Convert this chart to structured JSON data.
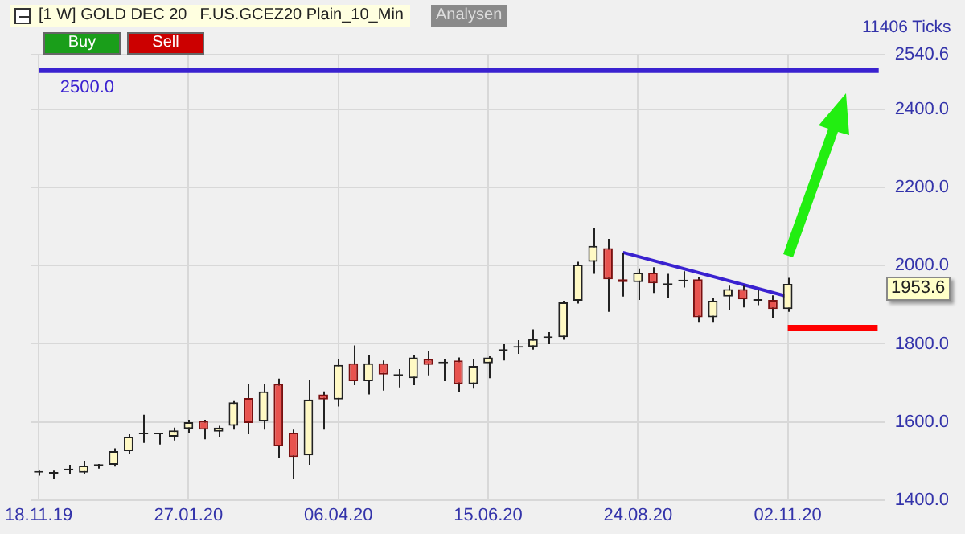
{
  "chart_data": {
    "type": "candlestick",
    "title": "[1 W] GOLD DEC 20",
    "subtitle": "F.US.GCEZ20 Plain_10_Min",
    "categories": [
      "18.11.19",
      null,
      null,
      null,
      null,
      null,
      null,
      null,
      null,
      null,
      "27.01.20",
      null,
      null,
      null,
      null,
      null,
      null,
      null,
      null,
      null,
      "06.04.20",
      null,
      null,
      null,
      null,
      null,
      null,
      null,
      null,
      null,
      "15.06.20",
      null,
      null,
      null,
      null,
      null,
      null,
      null,
      null,
      null,
      "24.08.20",
      null,
      null,
      null,
      null,
      null,
      null,
      null,
      null,
      null,
      "02.11.20",
      null,
      null,
      null,
      null,
      null,
      null
    ],
    "ohlc": [
      [
        1470,
        1475,
        1462,
        1470
      ],
      [
        1467,
        1475,
        1454,
        1467
      ],
      [
        1476,
        1490,
        1466,
        1476
      ],
      [
        1470,
        1500,
        1465,
        1488
      ],
      [
        1487,
        1492,
        1480,
        1487
      ],
      [
        1490,
        1532,
        1485,
        1525
      ],
      [
        1525,
        1568,
        1518,
        1562
      ],
      [
        1568,
        1618,
        1546,
        1568
      ],
      [
        1568,
        1572,
        1542,
        1568
      ],
      [
        1562,
        1585,
        1552,
        1578
      ],
      [
        1582,
        1605,
        1570,
        1599
      ],
      [
        1602,
        1605,
        1555,
        1580
      ],
      [
        1575,
        1590,
        1562,
        1585
      ],
      [
        1590,
        1655,
        1580,
        1650
      ],
      [
        1661,
        1697,
        1568,
        1597
      ],
      [
        1601,
        1697,
        1580,
        1678
      ],
      [
        1697,
        1711,
        1507,
        1537
      ],
      [
        1572,
        1580,
        1454,
        1510
      ],
      [
        1514,
        1707,
        1490,
        1657
      ],
      [
        1670,
        1678,
        1580,
        1657
      ],
      [
        1657,
        1761,
        1639,
        1746
      ],
      [
        1750,
        1796,
        1694,
        1704
      ],
      [
        1704,
        1771,
        1670,
        1750
      ],
      [
        1750,
        1757,
        1680,
        1721
      ],
      [
        1718,
        1735,
        1688,
        1718
      ],
      [
        1712,
        1771,
        1694,
        1765
      ],
      [
        1761,
        1782,
        1719,
        1746
      ],
      [
        1750,
        1761,
        1704,
        1750
      ],
      [
        1757,
        1765,
        1677,
        1697
      ],
      [
        1697,
        1761,
        1685,
        1743
      ],
      [
        1750,
        1768,
        1712,
        1765
      ],
      [
        1782,
        1799,
        1757,
        1782
      ],
      [
        1790,
        1809,
        1774,
        1790
      ],
      [
        1792,
        1837,
        1785,
        1812
      ],
      [
        1815,
        1830,
        1799,
        1815
      ],
      [
        1817,
        1910,
        1810,
        1906
      ],
      [
        1910,
        2010,
        1903,
        2003
      ],
      [
        2010,
        2097,
        1979,
        2051
      ],
      [
        2045,
        2069,
        1882,
        1965
      ],
      [
        1965,
        2034,
        1921,
        1958
      ],
      [
        1958,
        1993,
        1912,
        1982
      ],
      [
        1982,
        1996,
        1930,
        1955
      ],
      [
        1951,
        1979,
        1917,
        1951
      ],
      [
        1960,
        1986,
        1944,
        1960
      ],
      [
        1965,
        1972,
        1854,
        1868
      ],
      [
        1868,
        1917,
        1854,
        1910
      ],
      [
        1921,
        1949,
        1886,
        1940
      ],
      [
        1940,
        1949,
        1893,
        1914
      ],
      [
        1910,
        1937,
        1899,
        1910
      ],
      [
        1912,
        1924,
        1865,
        1889
      ],
      [
        1889,
        1969,
        1882,
        1953.6
      ],
      null,
      null,
      null,
      null,
      null,
      null
    ],
    "series": [
      {
        "type": "line",
        "color": "#3a22d0",
        "values": [
          null,
          null,
          null,
          null,
          null,
          null,
          null,
          null,
          null,
          null,
          null,
          null,
          null,
          null,
          null,
          null,
          null,
          null,
          null,
          null,
          null,
          null,
          null,
          null,
          null,
          null,
          null,
          null,
          null,
          null,
          null,
          null,
          null,
          null,
          null,
          null,
          null,
          null,
          null,
          2034,
          null,
          null,
          null,
          null,
          null,
          null,
          null,
          null,
          null,
          null,
          1921,
          null,
          null,
          null,
          null,
          null,
          null
        ]
      },
      {
        "type": "line",
        "color": "#ff0000",
        "values": [
          null,
          null,
          null,
          null,
          null,
          null,
          null,
          null,
          null,
          null,
          null,
          null,
          null,
          null,
          null,
          null,
          null,
          null,
          null,
          null,
          null,
          null,
          null,
          null,
          null,
          null,
          null,
          null,
          null,
          null,
          null,
          null,
          null,
          null,
          null,
          null,
          null,
          null,
          null,
          null,
          null,
          null,
          null,
          null,
          null,
          null,
          null,
          null,
          null,
          null,
          1840,
          1840,
          1840,
          1840,
          1840,
          1840,
          1840
        ]
      }
    ],
    "ylim": [
      1400,
      2540.6
    ],
    "yticks": [
      {
        "value": 1400,
        "label": "1400.0"
      },
      {
        "value": 1600,
        "label": "1600.0"
      },
      {
        "value": 1800,
        "label": "1800.0"
      },
      {
        "value": 2000,
        "label": "2000.0"
      },
      {
        "value": 2200,
        "label": "2200.0"
      },
      {
        "value": 2400,
        "label": "2400.0"
      },
      {
        "value": 2540.6,
        "label": "2540.6"
      }
    ],
    "ref_lines": [
      {
        "axis": "y",
        "value": 2500,
        "label": "2500.0",
        "color": "#3a22d0"
      }
    ],
    "annotations": [
      "Buy",
      "Sell",
      "Analysen",
      "11406 Ticks",
      "1953.6"
    ],
    "grid": true,
    "legend": false
  }
}
